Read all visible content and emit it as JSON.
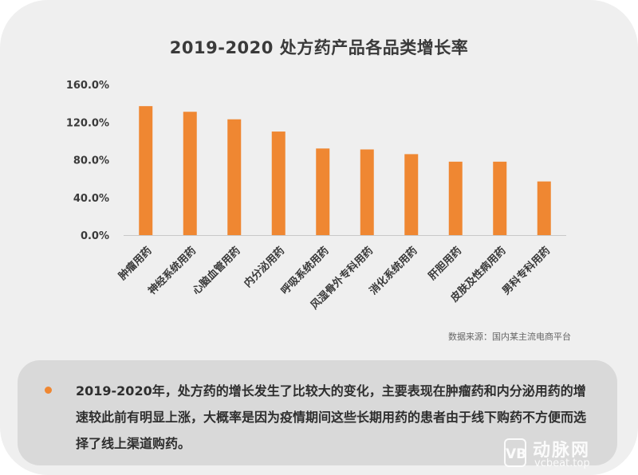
{
  "chart_data": {
    "type": "bar",
    "title": "2019-2020 处方药产品各品类增长率",
    "categories": [
      "肿瘤用药",
      "神经系统用药",
      "心脑血管用药",
      "内分泌用药",
      "呼吸系统用药",
      "风湿骨外专科用药",
      "消化系统用药",
      "肝胆用药",
      "皮肤及性病用药",
      "男科专科用药"
    ],
    "values": [
      137,
      131,
      123,
      110,
      92,
      91,
      86,
      78,
      78,
      57
    ],
    "ylim": [
      0,
      160
    ],
    "yticks": [
      "0.0%",
      "40.0%",
      "80.0%",
      "120.0%",
      "160.0%"
    ],
    "ytick_values": [
      0,
      40,
      80,
      120,
      160
    ],
    "bar_color": "#ef8732",
    "grid": false,
    "legend": "none"
  },
  "source_text": "数据来源：国内某主流电商平台",
  "note": {
    "text": "2019-2020年，处方药的增长发生了比较大的变化，主要表现在肿瘤药和内分泌用药的增速较此前有明显上涨，大概率是因为疫情期间这些长期用药的患者由于线下购药不方便而选择了线上渠道购药。",
    "bullet_color": "#ef8732"
  },
  "watermark": {
    "logo_text": "VB",
    "name": "动脉网",
    "url": "vcbeat.top"
  }
}
